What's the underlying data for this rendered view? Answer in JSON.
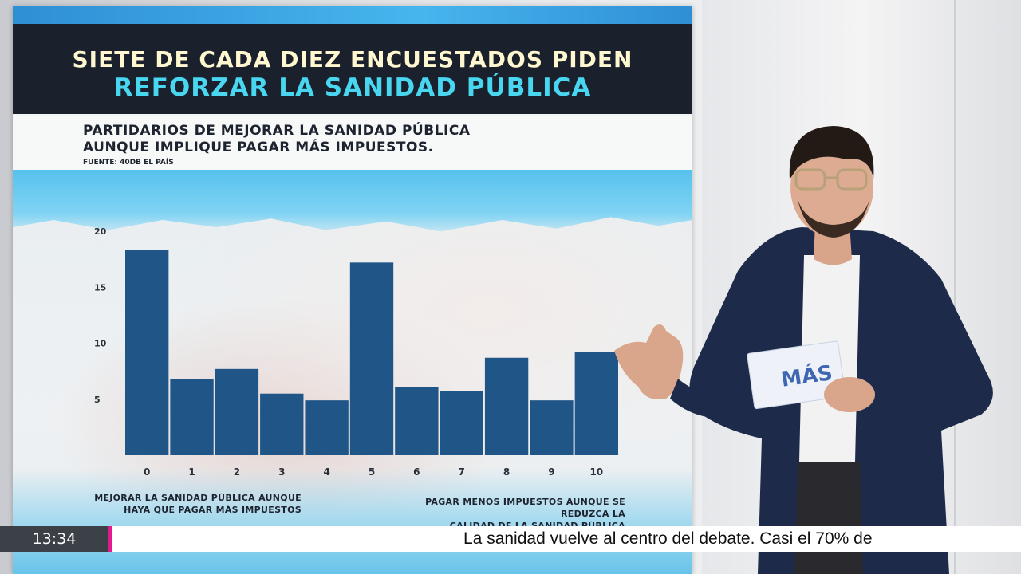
{
  "graphic": {
    "headline_line1": "SIETE DE CADA DIEZ ENCUESTADOS PIDEN",
    "headline_line2": "REFORZAR LA SANIDAD PÚBLICA",
    "subtitle_line1": "PARTIDARIOS DE MEJORAR LA SANIDAD PÚBLICA",
    "subtitle_line2": "AUNQUE IMPLIQUE PAGAR MÁS IMPUESTOS.",
    "source": "FUENTE: 40DB EL PAÍS",
    "left_scale_label_line1": "MEJORAR LA SANIDAD PÚBLICA AUNQUE",
    "left_scale_label_line2": "HAYA QUE PAGAR MÁS IMPUESTOS",
    "right_scale_label_line1": "PAGAR MENOS IMPUESTOS AUNQUE SE REDUZCA LA",
    "right_scale_label_line2": "CALIDAD DE LA SANIDAD PÚBLICA"
  },
  "chart_data": {
    "type": "bar",
    "categories": [
      "0",
      "1",
      "2",
      "3",
      "4",
      "5",
      "6",
      "7",
      "8",
      "9",
      "10"
    ],
    "values": [
      18.3,
      6.8,
      7.7,
      5.5,
      4.9,
      17.2,
      6.1,
      5.7,
      8.7,
      4.9,
      9.2
    ],
    "yticks": [
      "5",
      "10",
      "15",
      "20"
    ],
    "ylim": [
      0,
      20
    ],
    "title": "PARTIDARIOS DE MEJORAR LA SANIDAD PÚBLICA AUNQUE IMPLIQUE PAGAR MÁS IMPUESTOS.",
    "xlabel": "",
    "ylabel": "",
    "grid": false,
    "colors": {
      "bar": "#1f5687"
    }
  },
  "ticker": {
    "time": "13:34",
    "headline": "La sanidad vuelve al centro del debate. Casi el 70% de",
    "accent_color": "#e21a8d"
  },
  "presenter_card": {
    "logo_text": "MÁS"
  }
}
